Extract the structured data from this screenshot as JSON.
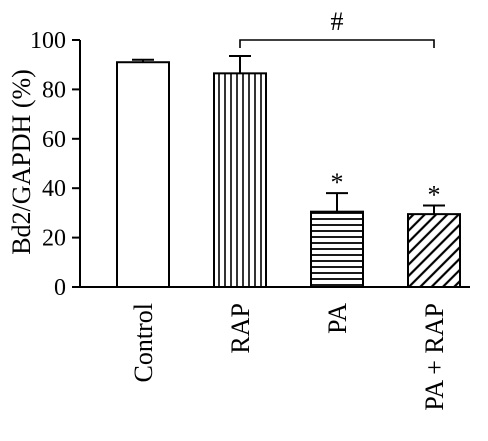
{
  "chart_data": {
    "type": "bar",
    "categories": [
      "Control",
      "RAP",
      "PA",
      "PA + RAP"
    ],
    "values": [
      91,
      86.5,
      30.5,
      29.5
    ],
    "errors": [
      1,
      7,
      7.5,
      3.5
    ],
    "patterns": [
      "none",
      "vertical-lines",
      "horizontal-lines",
      "diagonal-lines"
    ],
    "ylabel": "Bd2/GAPDH (%)",
    "ylim": [
      0,
      100
    ],
    "yticks": [
      0,
      20,
      40,
      60,
      80,
      100
    ],
    "annotations": {
      "significance_bracket": {
        "from": "RAP",
        "to": "PA + RAP",
        "label": "#"
      },
      "star_marks": [
        {
          "category": "PA",
          "label": "*"
        },
        {
          "category": "PA + RAP",
          "label": "*"
        }
      ]
    },
    "grid": false,
    "legend": "none"
  }
}
